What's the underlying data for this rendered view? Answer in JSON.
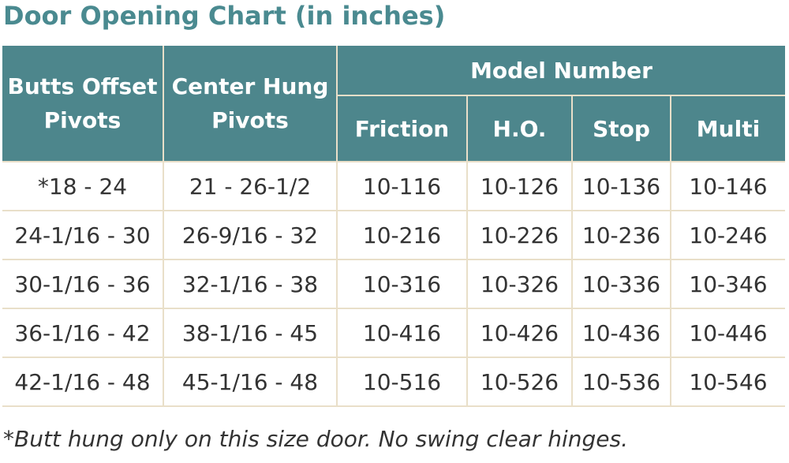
{
  "title": "Door Opening Chart (in inches)",
  "table": {
    "headers": {
      "butts_offset_pivots": "Butts Offset Pivots",
      "center_hung_pivots": "Center Hung Pivots",
      "model_number": "Model Number",
      "friction": "Friction",
      "ho": "H.O.",
      "stop": "Stop",
      "multi": "Multi"
    },
    "rows": [
      [
        "*18 - 24",
        "21 - 26-1/2",
        "10-116",
        "10-126",
        "10-136",
        "10-146"
      ],
      [
        "24-1/16 - 30",
        "26-9/16 - 32",
        "10-216",
        "10-226",
        "10-236",
        "10-246"
      ],
      [
        "30-1/16 - 36",
        "32-1/16 - 38",
        "10-316",
        "10-326",
        "10-336",
        "10-346"
      ],
      [
        "36-1/16 - 42",
        "38-1/16 - 45",
        "10-416",
        "10-426",
        "10-436",
        "10-446"
      ],
      [
        "42-1/16 - 48",
        "45-1/16 - 48",
        "10-516",
        "10-526",
        "10-536",
        "10-546"
      ]
    ]
  },
  "footnote": "*Butt hung only on this size door. No swing clear hinges.",
  "colors": {
    "header_bg": "#4d868c",
    "title": "#4a8a90",
    "grid": "#e9dfc9",
    "text": "#333333"
  }
}
